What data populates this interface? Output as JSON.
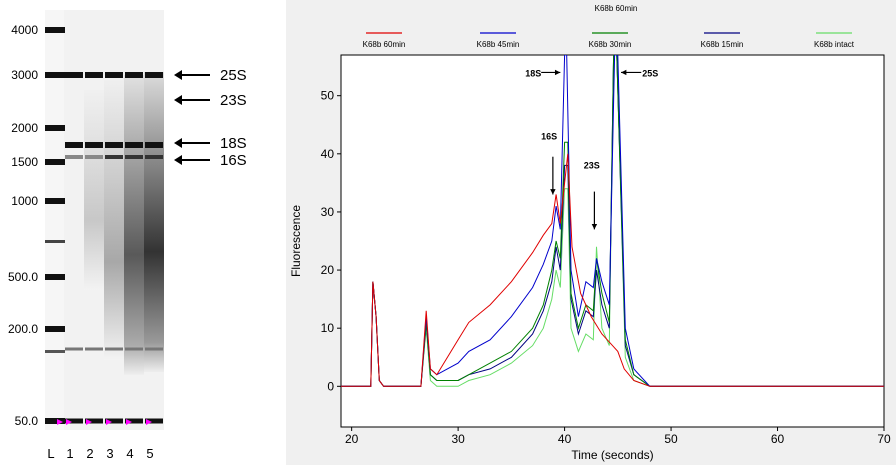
{
  "gel": {
    "ladder_labels": [
      "4000",
      "3000",
      "2000",
      "1500",
      "1000",
      "500.0",
      "200.0",
      "50.0"
    ],
    "lane_labels": [
      "L",
      "1",
      "2",
      "3",
      "4",
      "5"
    ],
    "band_labels": [
      "25S",
      "23S",
      "18S",
      "16S"
    ]
  },
  "chart_data": {
    "type": "line",
    "title": "K68b 60min",
    "xlabel": "Time (seconds)",
    "ylabel": "Fluorescence",
    "xlim": [
      19,
      70
    ],
    "ylim": [
      -7,
      57
    ],
    "xticks": [
      20,
      30,
      40,
      50,
      60,
      70
    ],
    "yticks": [
      0,
      10,
      20,
      30,
      40,
      50
    ],
    "legend_position": "top",
    "series": [
      {
        "name": "K68b 60min",
        "color": "#e00000",
        "x": [
          19,
          21.8,
          22,
          22.3,
          22.6,
          23,
          26.5,
          27,
          27.4,
          28,
          30,
          31,
          33,
          35,
          37,
          38,
          38.8,
          39.2,
          39.6,
          40,
          40.3,
          40.7,
          41.5,
          42.5,
          43.5,
          44.5,
          45,
          45.6,
          46.5,
          48,
          50,
          55,
          70
        ],
        "y": [
          0,
          0,
          18,
          12,
          1,
          0,
          0,
          13,
          3,
          2,
          8,
          11,
          14,
          18,
          23,
          26,
          28,
          33,
          28,
          35,
          40,
          24,
          16,
          12,
          9,
          7,
          6,
          3,
          1,
          0,
          0,
          0,
          0
        ]
      },
      {
        "name": "K68b 45min",
        "color": "#0000cc",
        "x": [
          19,
          21.8,
          22,
          22.3,
          22.6,
          23,
          26.5,
          27,
          27.4,
          28,
          30,
          31,
          33,
          35,
          37,
          38,
          38.8,
          39.2,
          39.6,
          40,
          40.2,
          40.6,
          41.3,
          42,
          42.7,
          43,
          43.5,
          44.2,
          44.7,
          45,
          45.7,
          46.5,
          48,
          50,
          55,
          70
        ],
        "y": [
          0,
          0,
          18,
          12,
          1,
          0,
          0,
          12,
          3,
          2,
          4,
          6,
          8,
          12,
          17,
          21,
          25,
          31,
          27,
          57,
          57,
          20,
          12,
          18,
          17,
          22,
          18,
          14,
          57,
          57,
          10,
          3,
          0,
          0,
          0,
          0
        ]
      },
      {
        "name": "K68b 30min",
        "color": "#008000",
        "x": [
          19,
          21.8,
          22,
          22.3,
          22.6,
          23,
          26.5,
          27,
          27.4,
          28,
          30,
          31,
          33,
          35,
          37,
          38,
          38.8,
          39.2,
          39.6,
          40,
          40.3,
          40.6,
          41.3,
          42,
          42.7,
          43,
          43.5,
          44.2,
          44.6,
          44.9,
          45.7,
          46.5,
          48,
          50,
          55,
          70
        ],
        "y": [
          0,
          0,
          18,
          12,
          1,
          0,
          0,
          11,
          2,
          1,
          1,
          2,
          4,
          6,
          10,
          14,
          20,
          25,
          22,
          42,
          42,
          16,
          10,
          14,
          13,
          22,
          16,
          11,
          57,
          57,
          8,
          2,
          0,
          0,
          0,
          0
        ]
      },
      {
        "name": "K68b 15min",
        "color": "#000080",
        "x": [
          19,
          21.8,
          22,
          22.3,
          22.6,
          23,
          26.5,
          27,
          27.4,
          28,
          30,
          31,
          33,
          35,
          37,
          38,
          38.8,
          39.2,
          39.6,
          40,
          40.3,
          40.6,
          41.3,
          42,
          42.7,
          43,
          43.5,
          44.2,
          44.6,
          44.9,
          45.7,
          46.5,
          48,
          50,
          55,
          70
        ],
        "y": [
          0,
          0,
          18,
          12,
          1,
          0,
          0,
          11,
          2,
          1,
          1,
          2,
          3,
          5,
          9,
          13,
          18,
          24,
          20,
          38,
          38,
          15,
          9,
          13,
          12,
          20,
          14,
          10,
          57,
          57,
          7,
          2,
          0,
          0,
          0,
          0
        ]
      },
      {
        "name": "K68b intact",
        "color": "#66dd66",
        "x": [
          19,
          21.8,
          22,
          22.3,
          22.6,
          23,
          26.5,
          27,
          27.4,
          28,
          30,
          31,
          33,
          35,
          37,
          38,
          38.8,
          39.2,
          39.6,
          40,
          40.3,
          40.6,
          41.3,
          42,
          42.7,
          43,
          43.5,
          44.2,
          44.6,
          44.9,
          45.7,
          46.5,
          48,
          50,
          55,
          70
        ],
        "y": [
          0,
          0,
          18,
          12,
          1,
          0,
          0,
          10,
          1,
          0,
          0,
          1,
          2,
          4,
          7,
          10,
          15,
          20,
          17,
          34,
          34,
          10,
          6,
          9,
          8,
          24,
          10,
          7,
          57,
          57,
          5,
          1,
          0,
          0,
          0,
          0
        ]
      }
    ],
    "annotations": [
      "18S",
      "16S",
      "23S",
      "25S"
    ]
  }
}
